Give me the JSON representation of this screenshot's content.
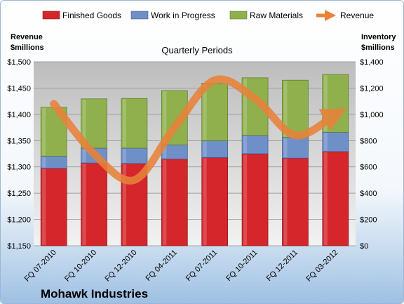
{
  "brand": "Mohawk Industries",
  "chart_data": {
    "type": "bar",
    "title": "Quarterly Periods",
    "categories": [
      "FQ 07-2010",
      "FQ 10-2010",
      "FQ 12-2010",
      "FQ 04-2011",
      "FQ 07-2011",
      "FQ 10-2011",
      "FQ 12-2011",
      "FQ 03-2012"
    ],
    "stacked": true,
    "series": [
      {
        "name": "Finished Goods",
        "color": "#d4262b",
        "axis": "right",
        "values": [
          590,
          630,
          626,
          660,
          671,
          700,
          667,
          717
        ]
      },
      {
        "name": "Work in Progress",
        "color": "#6f8fc8",
        "axis": "right",
        "values": [
          92,
          113,
          117,
          108,
          128,
          140,
          158,
          147
        ]
      },
      {
        "name": "Raw Materials",
        "color": "#8fb04c",
        "axis": "right",
        "values": [
          372,
          375,
          378,
          413,
          438,
          438,
          435,
          439
        ]
      }
    ],
    "line_series": [
      {
        "name": "Revenue",
        "color": "#e8823a",
        "axis": "left",
        "values": [
          1420,
          1325,
          1275,
          1375,
          1465,
          1430,
          1360,
          1400
        ]
      }
    ],
    "left_axis": {
      "label_line1": "Revenue",
      "label_line2": "$millions",
      "ylim": [
        1150,
        1500
      ],
      "ticks": [
        "$1,150",
        "$1,200",
        "$1,250",
        "$1,300",
        "$1,350",
        "$1,400",
        "$1,450",
        "$1,500"
      ]
    },
    "right_axis": {
      "label_line1": "Inventory",
      "label_line2": "$millions",
      "ylim": [
        0,
        1400
      ],
      "ticks": [
        "$0",
        "$200",
        "$400",
        "$600",
        "$800",
        "$1,000",
        "$1,200",
        "$1,400"
      ]
    },
    "legend_position": "top",
    "grid": true
  }
}
